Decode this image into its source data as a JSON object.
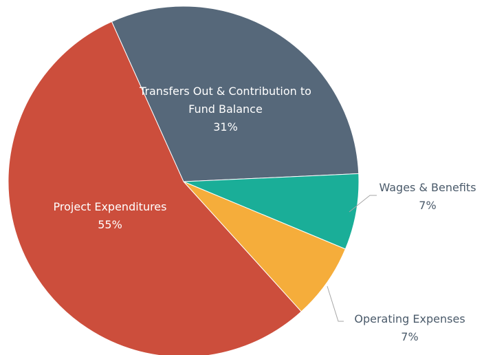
{
  "chart_data": {
    "type": "pie",
    "categories": [
      "Transfers Out & Contribution to Fund Balance",
      "Wages & Benefits",
      "Operating Expenses",
      "Project Expenditures"
    ],
    "values": [
      31,
      7,
      7,
      55
    ],
    "value_labels": [
      "31%",
      "7%",
      "7%",
      "55%"
    ],
    "colors": [
      "#56687a",
      "#1aae98",
      "#f5ad3b",
      "#cc4e3c"
    ]
  }
}
